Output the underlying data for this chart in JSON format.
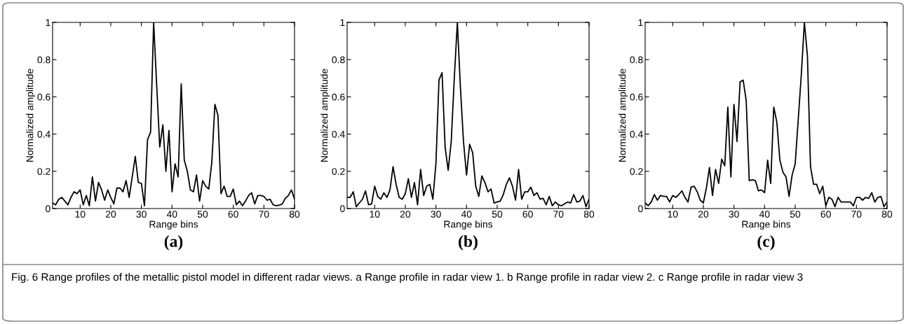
{
  "chart_data": [
    {
      "type": "line",
      "title": "(a)",
      "xlabel": "Range bins",
      "ylabel": "Normalized amplitude",
      "x": [
        1,
        2,
        3,
        4,
        5,
        6,
        7,
        8,
        9,
        10,
        11,
        12,
        13,
        14,
        15,
        16,
        17,
        18,
        19,
        20,
        21,
        22,
        23,
        24,
        25,
        26,
        27,
        28,
        29,
        30,
        31,
        32,
        33,
        34,
        35,
        36,
        37,
        38,
        39,
        40,
        41,
        42,
        43,
        44,
        45,
        46,
        47,
        48,
        49,
        50,
        51,
        52,
        53,
        54,
        55,
        56,
        57,
        58,
        59,
        60,
        61,
        62,
        63,
        64,
        65,
        66,
        67,
        68,
        69,
        70,
        71,
        72,
        73,
        74,
        75,
        76,
        77,
        78,
        79,
        80
      ],
      "series": [
        {
          "color": "#000000",
          "values": [
            0.03,
            0.02,
            0.05,
            0.06,
            0.04,
            0.02,
            0.06,
            0.09,
            0.08,
            0.1,
            0.02,
            0.07,
            0.015,
            0.17,
            0.04,
            0.14,
            0.1,
            0.045,
            0.1,
            0.06,
            0.025,
            0.11,
            0.11,
            0.09,
            0.15,
            0.06,
            0.17,
            0.28,
            0.14,
            0.135,
            0.015,
            0.37,
            0.41,
            1.0,
            0.66,
            0.33,
            0.45,
            0.2,
            0.42,
            0.09,
            0.24,
            0.17,
            0.67,
            0.26,
            0.2,
            0.1,
            0.09,
            0.18,
            0.04,
            0.15,
            0.12,
            0.105,
            0.25,
            0.56,
            0.5,
            0.08,
            0.12,
            0.065,
            0.065,
            0.105,
            0.02,
            0.04,
            0.015,
            0.04,
            0.07,
            0.085,
            0.025,
            0.07,
            0.07,
            0.065,
            0.045,
            0.05,
            0.02,
            0.015,
            0.018,
            0.025,
            0.055,
            0.07,
            0.1,
            0.05
          ]
        }
      ],
      "xlim": [
        1,
        80
      ],
      "xticks": [
        10,
        20,
        30,
        40,
        50,
        60,
        70,
        80
      ],
      "ylim": [
        0,
        1
      ],
      "yticks": [
        0,
        0.2,
        0.4,
        0.6,
        0.8,
        1
      ],
      "grid": false,
      "legend": false,
      "marker": "none",
      "line_style": "solid",
      "annotations": [
        "Fig. 6 Range profiles of the metallic pistol model in different radar views. a Range profile in radar view 1. b Range profile in radar view 2. c Range profile in radar view 3"
      ]
    },
    {
      "type": "line",
      "title": "(b)",
      "xlabel": "Range bins",
      "ylabel": "Normalized amplitude",
      "x": [
        1,
        2,
        3,
        4,
        5,
        6,
        7,
        8,
        9,
        10,
        11,
        12,
        13,
        14,
        15,
        16,
        17,
        18,
        19,
        20,
        21,
        22,
        23,
        24,
        25,
        26,
        27,
        28,
        29,
        30,
        31,
        32,
        33,
        34,
        35,
        36,
        37,
        38,
        39,
        40,
        41,
        42,
        43,
        44,
        45,
        46,
        47,
        48,
        49,
        50,
        51,
        52,
        53,
        54,
        55,
        56,
        57,
        58,
        59,
        60,
        61,
        62,
        63,
        64,
        65,
        66,
        67,
        68,
        69,
        70,
        71,
        72,
        73,
        74,
        75,
        76,
        77,
        78,
        79,
        80
      ],
      "series": [
        {
          "color": "#000000",
          "values": [
            0.06,
            0.06,
            0.09,
            0.01,
            0.03,
            0.05,
            0.095,
            0.02,
            0.025,
            0.12,
            0.065,
            0.05,
            0.085,
            0.06,
            0.1,
            0.225,
            0.13,
            0.06,
            0.05,
            0.08,
            0.16,
            0.06,
            0.14,
            0.02,
            0.21,
            0.07,
            0.12,
            0.13,
            0.05,
            0.24,
            0.69,
            0.73,
            0.33,
            0.205,
            0.36,
            0.7,
            1.0,
            0.65,
            0.36,
            0.18,
            0.345,
            0.3,
            0.12,
            0.065,
            0.175,
            0.14,
            0.09,
            0.105,
            0.03,
            0.035,
            0.04,
            0.075,
            0.13,
            0.165,
            0.12,
            0.045,
            0.21,
            0.05,
            0.09,
            0.09,
            0.115,
            0.07,
            0.085,
            0.05,
            0.055,
            0.02,
            0.065,
            0.015,
            0.035,
            0.02,
            0.015,
            0.025,
            0.035,
            0.03,
            0.075,
            0.035,
            0.04,
            0.07,
            0.01,
            0.05
          ]
        }
      ],
      "xlim": [
        1,
        80
      ],
      "xticks": [
        10,
        20,
        30,
        40,
        50,
        60,
        70,
        80
      ],
      "ylim": [
        0,
        1
      ],
      "yticks": [
        0,
        0.2,
        0.4,
        0.6,
        0.8,
        1
      ],
      "grid": false,
      "legend": false,
      "marker": "none",
      "line_style": "solid"
    },
    {
      "type": "line",
      "title": "(c)",
      "xlabel": "Range bins",
      "ylabel": "Normalized amplitude",
      "x": [
        1,
        2,
        3,
        4,
        5,
        6,
        7,
        8,
        9,
        10,
        11,
        12,
        13,
        14,
        15,
        16,
        17,
        18,
        19,
        20,
        21,
        22,
        23,
        24,
        25,
        26,
        27,
        28,
        29,
        30,
        31,
        32,
        33,
        34,
        35,
        36,
        37,
        38,
        39,
        40,
        41,
        42,
        43,
        44,
        45,
        46,
        47,
        48,
        49,
        50,
        51,
        52,
        53,
        54,
        55,
        56,
        57,
        58,
        59,
        60,
        61,
        62,
        63,
        64,
        65,
        66,
        67,
        68,
        69,
        70,
        71,
        72,
        73,
        74,
        75,
        76,
        77,
        78,
        79,
        80
      ],
      "series": [
        {
          "color": "#000000",
          "values": [
            0.03,
            0.015,
            0.035,
            0.075,
            0.045,
            0.07,
            0.065,
            0.065,
            0.035,
            0.07,
            0.06,
            0.075,
            0.095,
            0.06,
            0.035,
            0.115,
            0.12,
            0.09,
            0.045,
            0.03,
            0.11,
            0.22,
            0.07,
            0.21,
            0.135,
            0.265,
            0.23,
            0.545,
            0.17,
            0.56,
            0.36,
            0.68,
            0.69,
            0.58,
            0.15,
            0.155,
            0.15,
            0.095,
            0.1,
            0.085,
            0.26,
            0.135,
            0.545,
            0.465,
            0.26,
            0.195,
            0.17,
            0.065,
            0.18,
            0.24,
            0.48,
            0.72,
            1.0,
            0.82,
            0.225,
            0.13,
            0.13,
            0.08,
            0.12,
            0.015,
            0.06,
            0.05,
            0.01,
            0.06,
            0.035,
            0.035,
            0.035,
            0.035,
            0.015,
            0.06,
            0.06,
            0.045,
            0.06,
            0.055,
            0.085,
            0.035,
            0.06,
            0.065,
            0.01,
            0.035
          ]
        }
      ],
      "xlim": [
        1,
        80
      ],
      "xticks": [
        10,
        20,
        30,
        40,
        50,
        60,
        70,
        80
      ],
      "ylim": [
        0,
        1
      ],
      "yticks": [
        0,
        0.2,
        0.4,
        0.6,
        0.8,
        1
      ],
      "grid": false,
      "legend": false,
      "marker": "none",
      "line_style": "solid"
    }
  ]
}
